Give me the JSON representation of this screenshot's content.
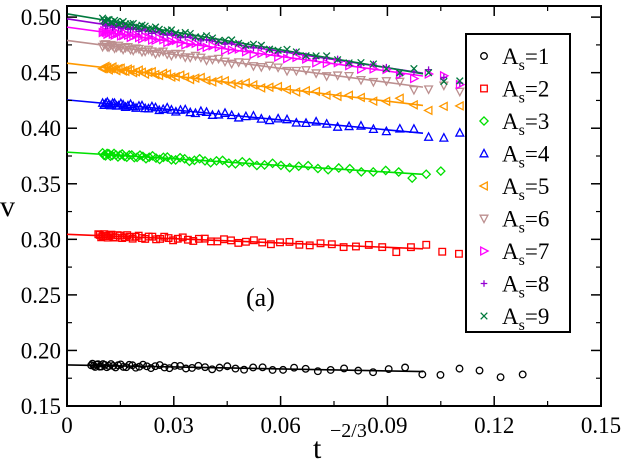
{
  "chart_data": {
    "type": "scatter",
    "panel_label": "(a)",
    "xlabel_base": "t",
    "xlabel_exponent": "−2/3",
    "ylabel": "v",
    "xlim": [
      0,
      0.15
    ],
    "ylim": [
      0.15,
      0.51
    ],
    "x_ticks": [
      0,
      0.03,
      0.06,
      0.09,
      0.12,
      0.15
    ],
    "x_tick_labels": [
      "0",
      "0.03",
      "0.06",
      "0.09",
      "0.12",
      "0.15"
    ],
    "y_ticks": [
      0.15,
      0.2,
      0.25,
      0.3,
      0.35,
      0.4,
      0.45,
      0.5
    ],
    "y_tick_labels": [
      "0.15",
      "0.20",
      "0.25",
      "0.30",
      "0.35",
      "0.40",
      "0.45",
      "0.50"
    ],
    "legend_position": "right",
    "series": [
      {
        "name": "A",
        "sub": "s",
        "suffix": "=1",
        "color": "#000000",
        "marker": "circle",
        "fit": [
          0.187,
          -0.06
        ],
        "x_min": 0.0068,
        "x_max": 0.128
      },
      {
        "name": "A",
        "sub": "s",
        "suffix": "=2",
        "color": "#ff0000",
        "marker": "square",
        "fit": [
          0.3045,
          -0.13
        ],
        "x_min": 0.0088,
        "x_max": 0.115
      },
      {
        "name": "A",
        "sub": "s",
        "suffix": "=3",
        "color": "#00e000",
        "marker": "diamond",
        "fit": [
          0.3785,
          -0.2
        ],
        "x_min": 0.01,
        "x_max": 0.105
      },
      {
        "name": "A",
        "sub": "s",
        "suffix": "=4",
        "color": "#0000ff",
        "marker": "triangle-up",
        "fit": [
          0.4255,
          -0.3
        ],
        "x_min": 0.01,
        "x_max": 0.115
      },
      {
        "name": "A",
        "sub": "s",
        "suffix": "=5",
        "color": "#ff9900",
        "marker": "triangle-left",
        "fit": [
          0.4585,
          -0.38
        ],
        "x_min": 0.01,
        "x_max": 0.115
      },
      {
        "name": "A",
        "sub": "s",
        "suffix": "=6",
        "color": "#bc8f8f",
        "marker": "triangle-down",
        "fit": [
          0.479,
          -0.42
        ],
        "x_min": 0.01,
        "x_max": 0.115
      },
      {
        "name": "A",
        "sub": "s",
        "suffix": "=7",
        "color": "#ff00ff",
        "marker": "triangle-right",
        "fit": [
          0.491,
          -0.44
        ],
        "x_min": 0.01,
        "x_max": 0.115
      },
      {
        "name": "A",
        "sub": "s",
        "suffix": "=8",
        "color": "#9400d3",
        "marker": "plus",
        "fit": [
          0.4985,
          -0.49
        ],
        "x_min": 0.01,
        "x_max": 0.115
      },
      {
        "name": "A",
        "sub": "s",
        "suffix": "=9",
        "color": "#007a3d",
        "marker": "x",
        "fit": [
          0.503,
          -0.54
        ],
        "x_min": 0.01,
        "x_max": 0.115
      }
    ],
    "fit_x_range": [
      0.0,
      0.1
    ]
  }
}
